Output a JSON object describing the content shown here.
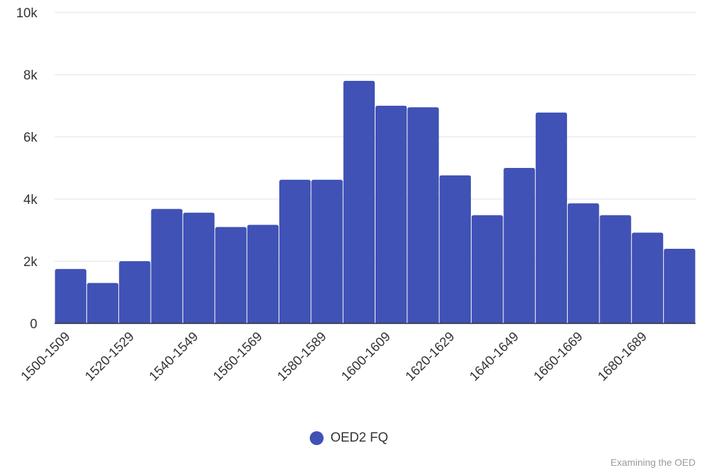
{
  "chart_data": {
    "type": "bar",
    "categories": [
      "1500-1509",
      "1510-1519",
      "1520-1529",
      "1530-1539",
      "1540-1549",
      "1550-1559",
      "1560-1569",
      "1570-1579",
      "1580-1589",
      "1590-1599",
      "1600-1609",
      "1610-1619",
      "1620-1629",
      "1630-1639",
      "1640-1649",
      "1650-1659",
      "1660-1669",
      "1670-1679",
      "1680-1689",
      "1690-1699"
    ],
    "series": [
      {
        "name": "OED2 FQ",
        "values": [
          1750,
          1300,
          2000,
          3680,
          3560,
          3100,
          3170,
          4620,
          4620,
          7800,
          7000,
          6950,
          4760,
          3480,
          5000,
          6780,
          3860,
          3480,
          2920,
          2400
        ]
      }
    ],
    "ylim": [
      0,
      10000
    ],
    "yticks": [
      0,
      2000,
      4000,
      6000,
      8000,
      10000
    ],
    "ytick_labels": [
      "0",
      "2k",
      "4k",
      "6k",
      "8k",
      "10k"
    ],
    "xtick_labels_shown": [
      "1500-1509",
      "1520-1529",
      "1540-1549",
      "1560-1569",
      "1580-1589",
      "1600-1609",
      "1620-1629",
      "1640-1649",
      "1660-1669",
      "1680-1689"
    ],
    "bar_color": "#4052b5",
    "grid": true,
    "legend_placement": "bottom"
  },
  "credit": "Examining the OED"
}
